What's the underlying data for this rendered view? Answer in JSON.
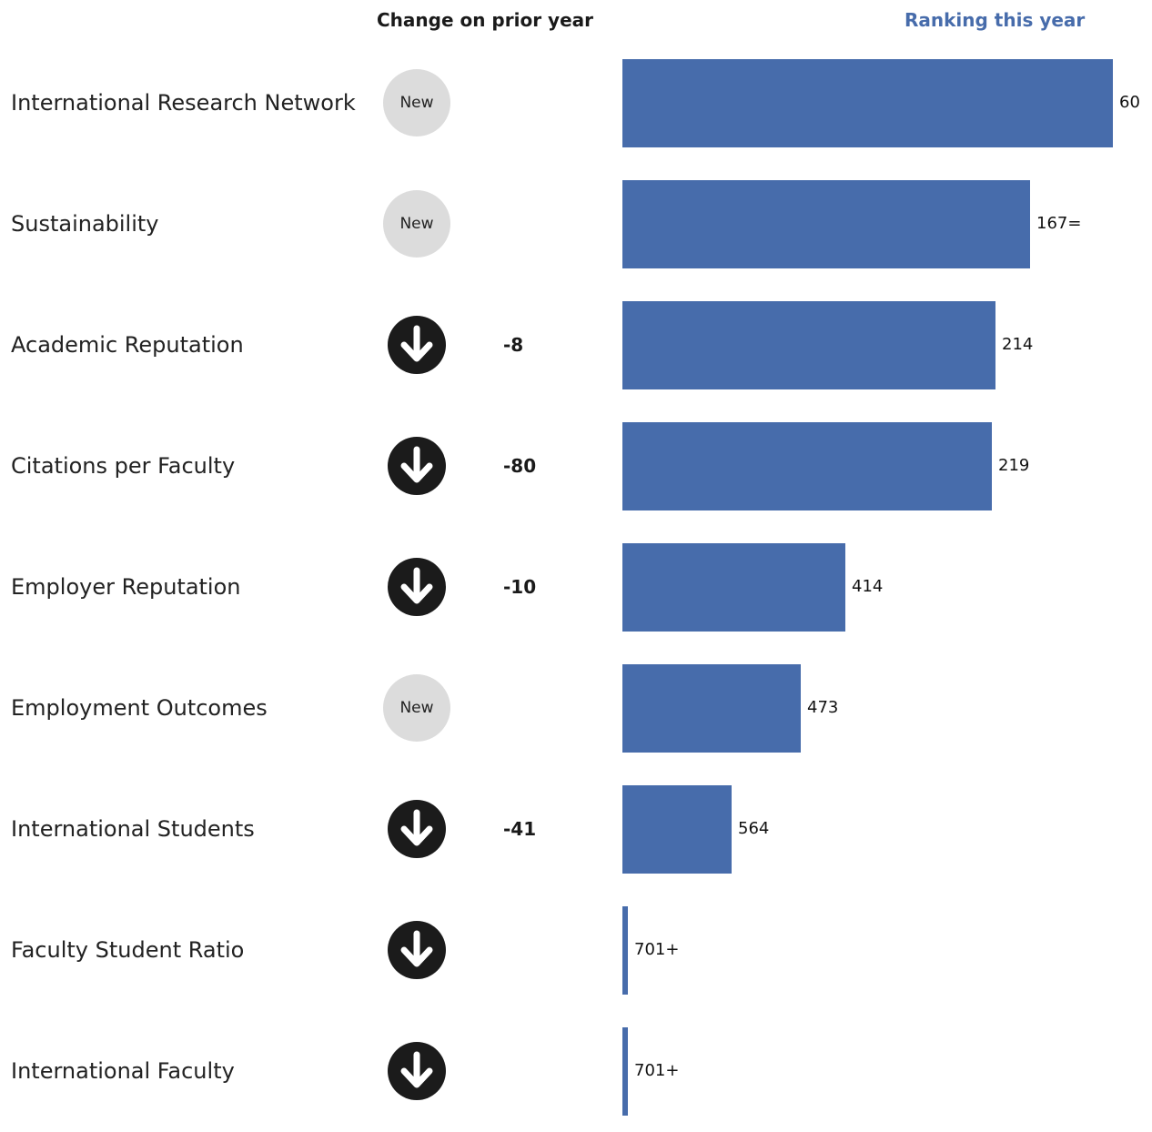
{
  "chart_data": {
    "type": "bar",
    "orientation": "horizontal",
    "headers": {
      "change": "Change on prior year",
      "ranking": "Ranking this year"
    },
    "categories": [
      "International Research Network",
      "Sustainability",
      "Academic Reputation",
      "Citations per Faculty",
      "Employer Reputation",
      "Employment Outcomes",
      "International Students",
      "Faculty Student Ratio",
      "International Faculty"
    ],
    "rank_labels": [
      "60",
      "167=",
      "214",
      "219",
      "414",
      "473",
      "564",
      "701+",
      "701+"
    ],
    "rank_values": [
      60,
      167,
      214,
      219,
      414,
      473,
      564,
      701,
      701
    ],
    "bar_fill_fraction": [
      1.0,
      0.832,
      0.76,
      0.754,
      0.455,
      0.364,
      0.223,
      0.01,
      0.01
    ],
    "change_status": [
      "new",
      "new",
      "down",
      "down",
      "down",
      "new",
      "down",
      "down",
      "down"
    ],
    "change_labels": [
      "New",
      "New",
      "-8",
      "-80",
      "-10",
      "New",
      "-41",
      "",
      ""
    ],
    "bar_color": "#476cab",
    "header_rank_color": "#476cab",
    "new_badge_color": "#dcdcdc",
    "down_icon": "arrow-down-circle-icon"
  }
}
